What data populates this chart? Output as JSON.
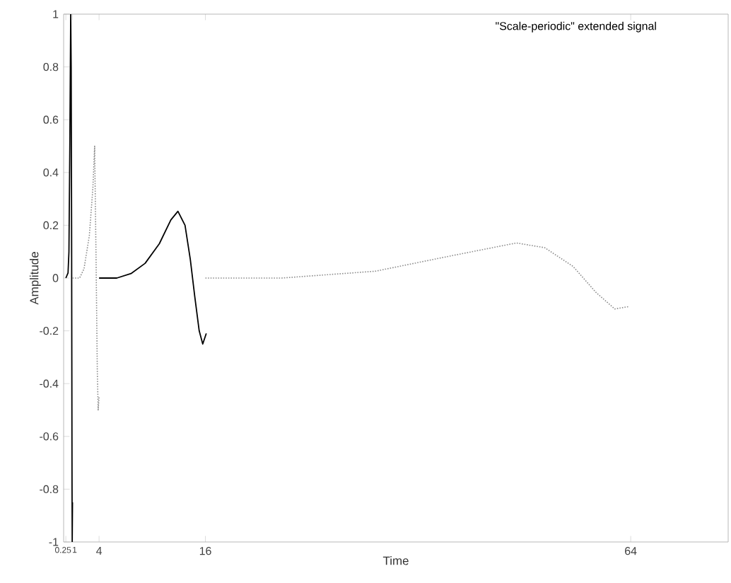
{
  "chart_data": {
    "type": "line",
    "xlabel": "Time",
    "ylabel": "Amplitude",
    "annotations": [
      "\"Scale-periodic\" extended signal"
    ],
    "xlim": [
      0,
      75
    ],
    "ylim": [
      -1,
      1
    ],
    "xticks": [
      0.25,
      1,
      4,
      16,
      64
    ],
    "yticks": [
      -1,
      -0.8,
      -0.6,
      -0.4,
      -0.2,
      0,
      0.2,
      0.4,
      0.6,
      0.8,
      1
    ],
    "grid": false,
    "marker": "none",
    "series": [
      {
        "color": "#000000",
        "line_style": "solid",
        "x": [
          0.25,
          0.5,
          0.6,
          0.7,
          0.8,
          0.85,
          0.9,
          0.95,
          0.97,
          1.0
        ],
        "values": [
          0,
          0.02,
          0.1,
          0.5,
          1.0,
          0.8,
          0.2,
          -0.8,
          -1.0,
          -0.85
        ]
      },
      {
        "color": "#8c8c8c",
        "line_style": "dotted",
        "x": [
          1,
          1.8,
          2.3,
          2.9,
          3.3,
          3.5,
          3.65,
          3.8,
          3.9,
          4
        ],
        "values": [
          0,
          0.0,
          0.035,
          0.16,
          0.34,
          0.5,
          0.1,
          -0.35,
          -0.5,
          -0.45
        ]
      },
      {
        "color": "#000000",
        "line_style": "solid",
        "x": [
          4,
          6,
          7.6,
          9.2,
          10.8,
          12.1,
          12.9,
          13.7,
          14.3,
          14.8,
          15.3,
          15.7,
          16.1
        ],
        "values": [
          0,
          0,
          0.017,
          0.056,
          0.13,
          0.22,
          0.253,
          0.2,
          0.07,
          -0.07,
          -0.2,
          -0.25,
          -0.21
        ]
      },
      {
        "color": "#8c8c8c",
        "line_style": "dotted",
        "x": [
          16,
          24.6,
          35.2,
          43.1,
          51.1,
          54.3,
          57.5,
          60.1,
          62.2,
          63.8
        ],
        "values": [
          0,
          0,
          0.026,
          0.08,
          0.133,
          0.115,
          0.044,
          -0.055,
          -0.117,
          -0.108
        ]
      }
    ]
  }
}
